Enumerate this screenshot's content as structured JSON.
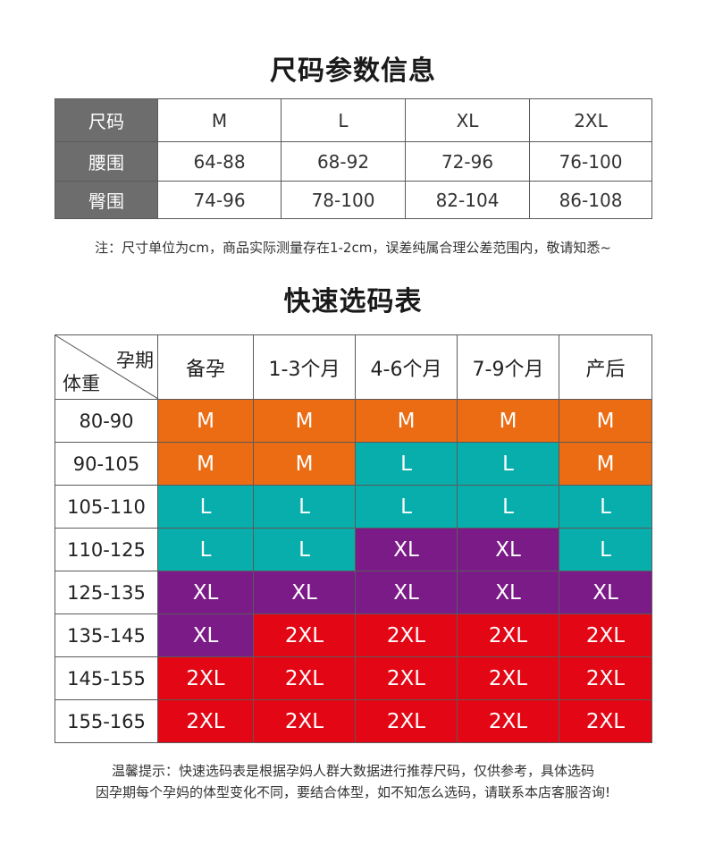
{
  "size_section": {
    "title": "尺码参数信息",
    "header": [
      "尺码",
      "M",
      "L",
      "XL",
      "2XL"
    ],
    "rows": [
      {
        "label": "腰围",
        "values": [
          "64-88",
          "68-92",
          "72-96",
          "76-100"
        ]
      },
      {
        "label": "臀围",
        "values": [
          "74-96",
          "78-100",
          "82-104",
          "86-108"
        ]
      }
    ],
    "note": "注：尺寸单位为cm，商品实际测量存在1-2cm，误差纯属合理公差范围内，敬请知悉~"
  },
  "quick_section": {
    "title": "快速选码表",
    "corner_top": "孕期",
    "corner_bottom": "体重",
    "periods": [
      "备孕",
      "1-3个月",
      "4-6个月",
      "7-9个月",
      "产后"
    ],
    "rows": [
      {
        "weight": "80-90",
        "sizes": [
          "M",
          "M",
          "M",
          "M",
          "M"
        ]
      },
      {
        "weight": "90-105",
        "sizes": [
          "M",
          "M",
          "L",
          "L",
          "M"
        ]
      },
      {
        "weight": "105-110",
        "sizes": [
          "L",
          "L",
          "L",
          "L",
          "L"
        ]
      },
      {
        "weight": "110-125",
        "sizes": [
          "L",
          "L",
          "XL",
          "XL",
          "L"
        ]
      },
      {
        "weight": "125-135",
        "sizes": [
          "XL",
          "XL",
          "XL",
          "XL",
          "XL"
        ]
      },
      {
        "weight": "135-145",
        "sizes": [
          "XL",
          "2XL",
          "2XL",
          "2XL",
          "2XL"
        ]
      },
      {
        "weight": "145-155",
        "sizes": [
          "2XL",
          "2XL",
          "2XL",
          "2XL",
          "2XL"
        ]
      },
      {
        "weight": "155-165",
        "sizes": [
          "2XL",
          "2XL",
          "2XL",
          "2XL",
          "2XL"
        ]
      }
    ],
    "size_colors": {
      "M": "#ec6c14",
      "L": "#08aeab",
      "XL": "#7b1b87",
      "2XL": "#e30614"
    },
    "tip_line1": "温馨提示：快速选码表是根据孕妈人群大数据进行推荐尺码，仅供参考，具体选码",
    "tip_line2": "因孕期每个孕妈的体型变化不同，要结合体型，如不知怎么选码，请联系本店客服咨询!"
  }
}
